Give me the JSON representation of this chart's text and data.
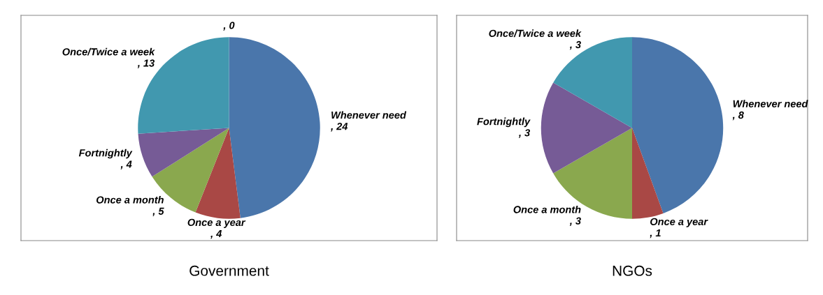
{
  "chart_data": [
    {
      "type": "pie",
      "title": "Government",
      "categories": [
        "Whenever need",
        "Once a year",
        "Once a month",
        "Fortnightly",
        "Once/Twice a week",
        null
      ],
      "values": [
        24,
        4,
        5,
        4,
        13,
        0
      ],
      "colors": [
        "#4a76ab",
        "#a94845",
        "#8aa84e",
        "#765b96",
        "#4198af",
        "#4a76ab"
      ],
      "value_labels": [
        ", 24",
        ", 4",
        ", 5",
        ", 4",
        ", 13",
        ", 0"
      ]
    },
    {
      "type": "pie",
      "title": "NGOs",
      "categories": [
        "Whenever need",
        "Once a year",
        "Once a month",
        "Fortnightly",
        "Once/Twice a week"
      ],
      "values": [
        8,
        1,
        3,
        3,
        3
      ],
      "colors": [
        "#4a76ab",
        "#a94845",
        "#8aa84e",
        "#765b96",
        "#4198af"
      ],
      "value_labels": [
        ", 8",
        ", 1",
        ", 3",
        ", 3",
        ", 3"
      ]
    }
  ]
}
